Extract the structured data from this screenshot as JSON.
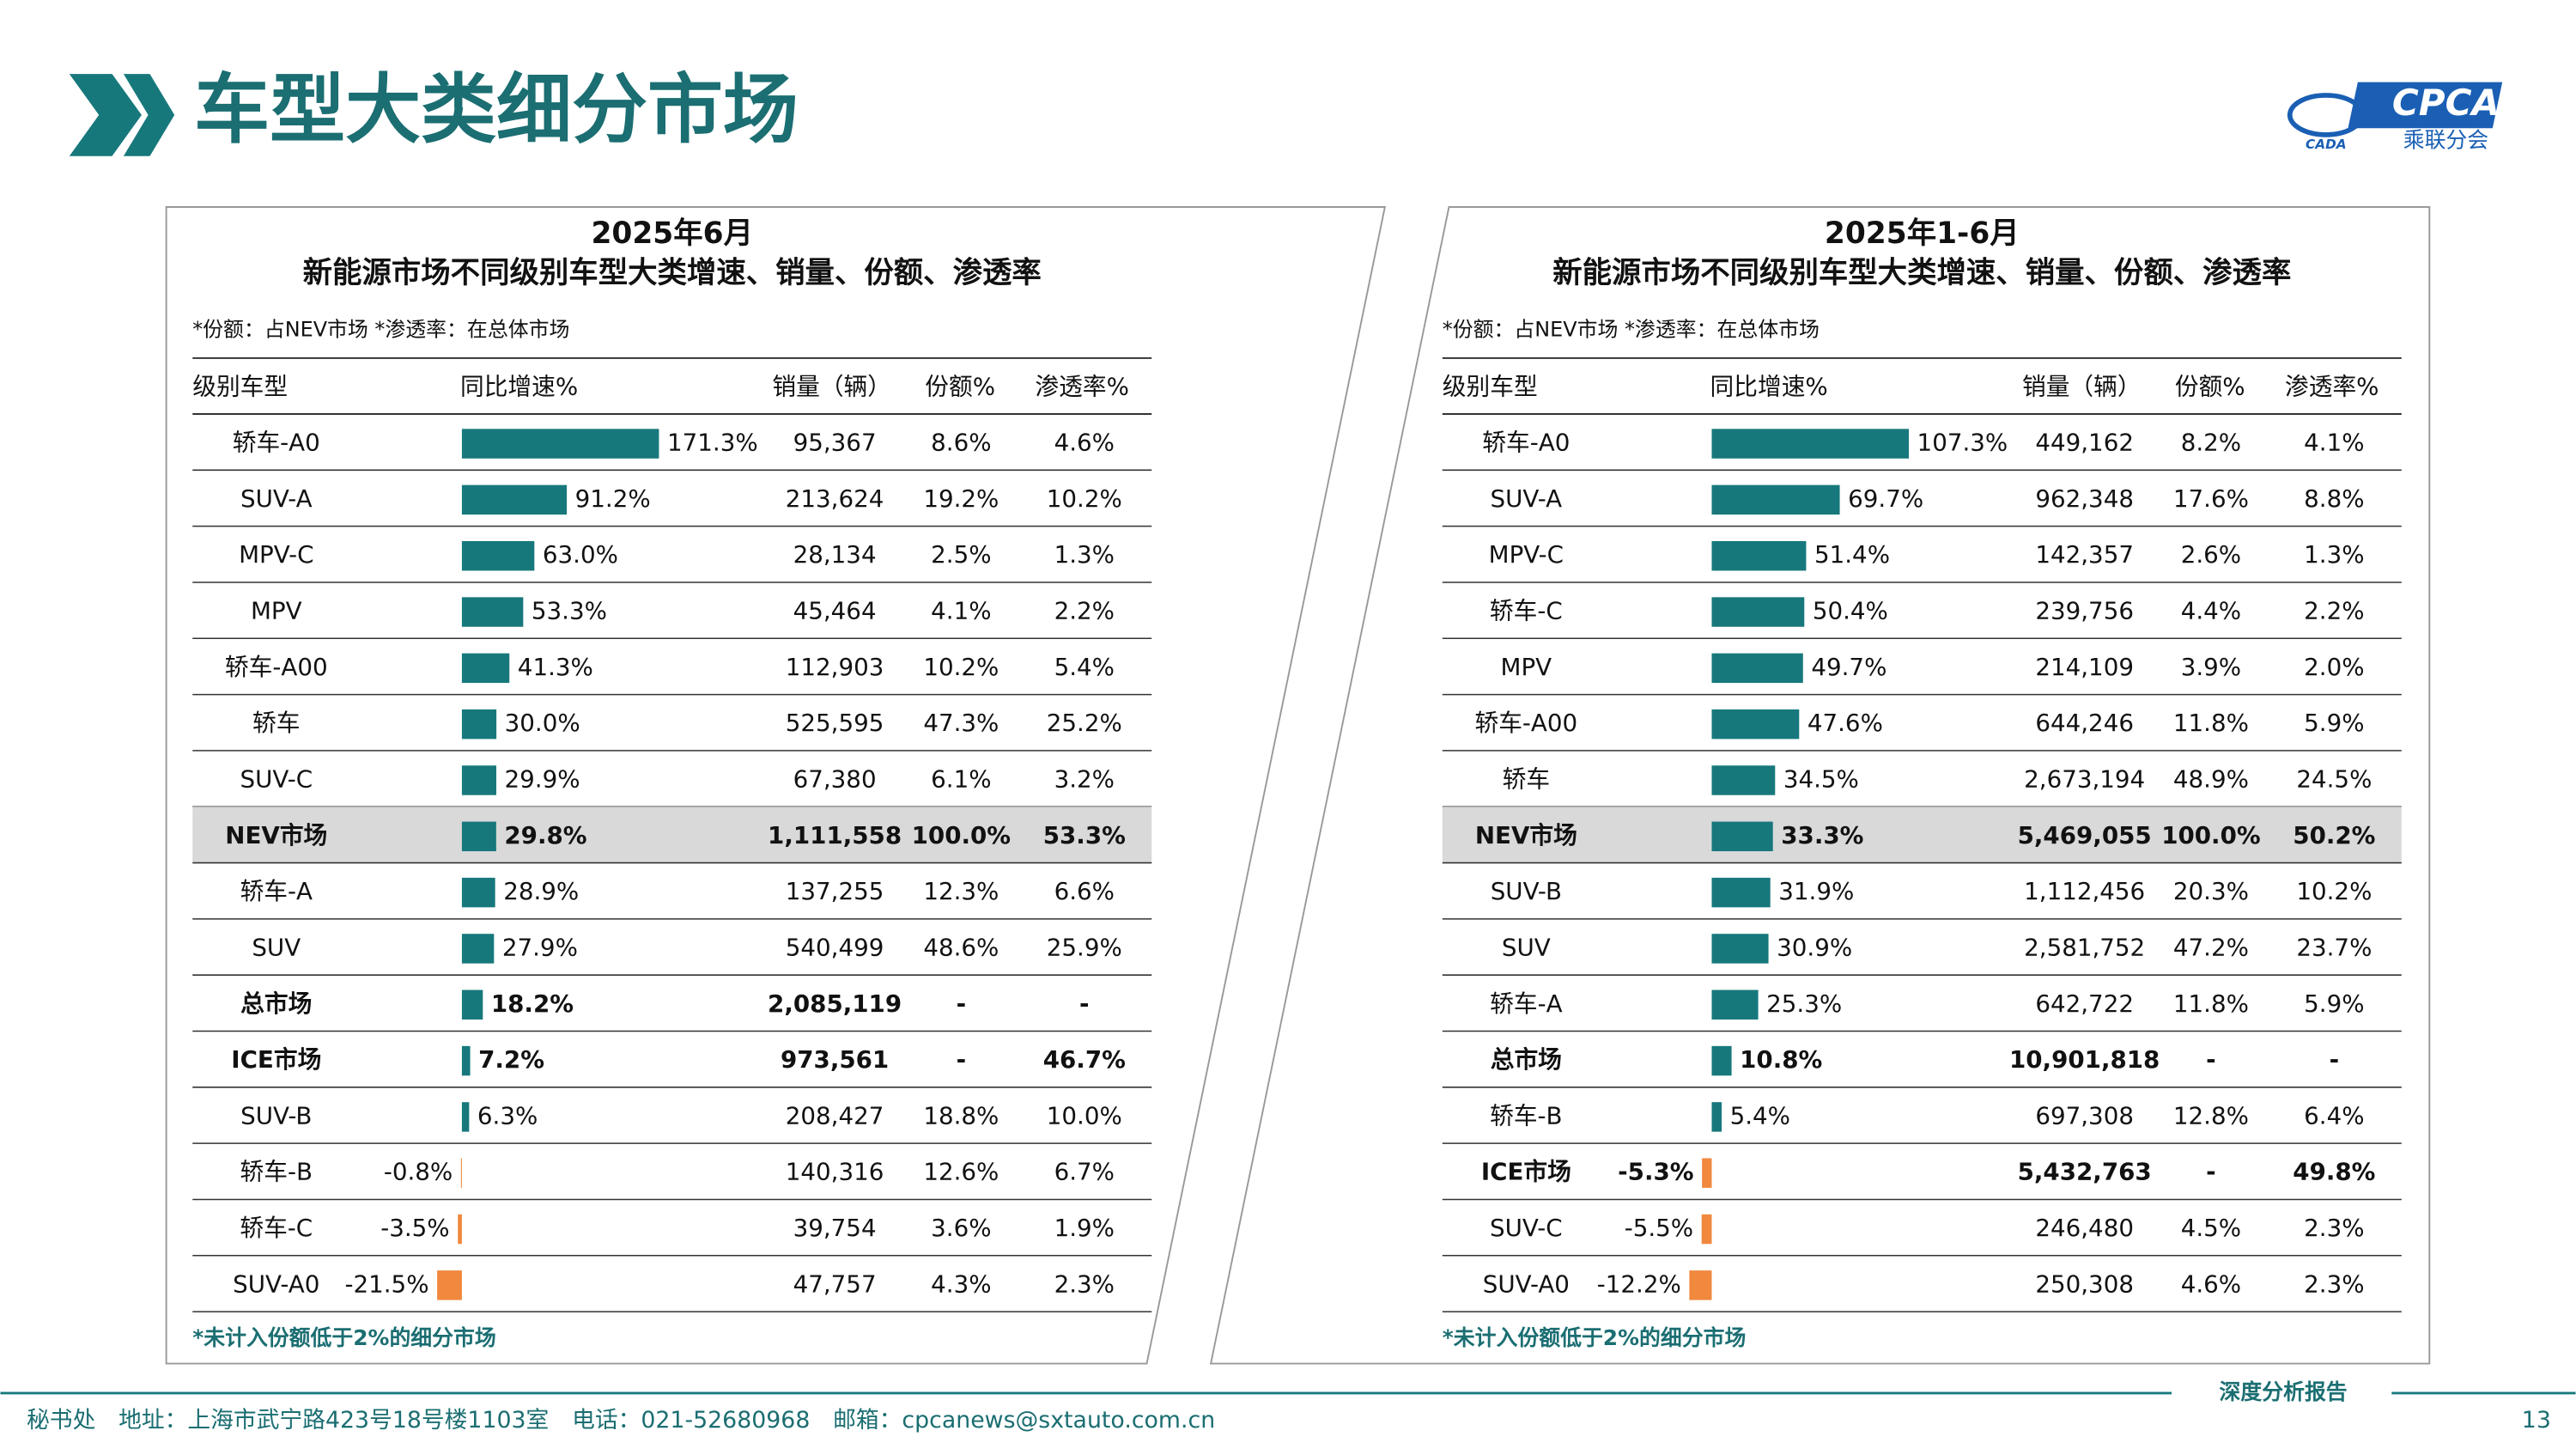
{
  "header": {
    "title": "车型大类细分市场",
    "logo": {
      "text": "CPCA",
      "subtitle": "乘联分会",
      "mark": "CADA"
    }
  },
  "bar_colors": {
    "positive": "#17787c",
    "negative": "#f0883e"
  },
  "tables": [
    {
      "title": "2025年6月",
      "subtitle": "新能源市场不同级别车型大类增速、销量、份额、渗透率",
      "note": "*份额：占NEV市场   *渗透率：在总体市场",
      "columns": [
        "级别车型",
        "同比增速%",
        "销量（辆）",
        "份额%",
        "渗透率%"
      ],
      "rows": [
        {
          "name": "轿车-A0",
          "growth": {
            "value": 171.3,
            "label": "171.3%"
          },
          "sales": "95,367",
          "share": "8.6%",
          "penetration": "4.6%"
        },
        {
          "name": "SUV-A",
          "growth": {
            "value": 91.2,
            "label": "91.2%"
          },
          "sales": "213,624",
          "share": "19.2%",
          "penetration": "10.2%"
        },
        {
          "name": "MPV-C",
          "growth": {
            "value": 63.0,
            "label": "63.0%"
          },
          "sales": "28,134",
          "share": "2.5%",
          "penetration": "1.3%"
        },
        {
          "name": "MPV",
          "growth": {
            "value": 53.3,
            "label": "53.3%"
          },
          "sales": "45,464",
          "share": "4.1%",
          "penetration": "2.2%"
        },
        {
          "name": "轿车-A00",
          "growth": {
            "value": 41.3,
            "label": "41.3%"
          },
          "sales": "112,903",
          "share": "10.2%",
          "penetration": "5.4%"
        },
        {
          "name": "轿车",
          "growth": {
            "value": 30.0,
            "label": "30.0%"
          },
          "sales": "525,595",
          "share": "47.3%",
          "penetration": "25.2%"
        },
        {
          "name": "SUV-C",
          "growth": {
            "value": 29.9,
            "label": "29.9%"
          },
          "sales": "67,380",
          "share": "6.1%",
          "penetration": "3.2%"
        },
        {
          "name": "NEV市场",
          "growth": {
            "value": 29.8,
            "label": "29.8%"
          },
          "sales": "1,111,558",
          "share": "100.0%",
          "penetration": "53.3%",
          "style": "highlight"
        },
        {
          "name": "轿车-A",
          "growth": {
            "value": 28.9,
            "label": "28.9%"
          },
          "sales": "137,255",
          "share": "12.3%",
          "penetration": "6.6%"
        },
        {
          "name": "SUV",
          "growth": {
            "value": 27.9,
            "label": "27.9%"
          },
          "sales": "540,499",
          "share": "48.6%",
          "penetration": "25.9%"
        },
        {
          "name": "总市场",
          "growth": {
            "value": 18.2,
            "label": "18.2%"
          },
          "sales": "2,085,119",
          "share": "-",
          "penetration": "-",
          "style": "bold"
        },
        {
          "name": "ICE市场",
          "growth": {
            "value": 7.2,
            "label": "7.2%"
          },
          "sales": "973,561",
          "share": "-",
          "penetration": "46.7%",
          "style": "bold"
        },
        {
          "name": "SUV-B",
          "growth": {
            "value": 6.3,
            "label": "6.3%"
          },
          "sales": "208,427",
          "share": "18.8%",
          "penetration": "10.0%"
        },
        {
          "name": "轿车-B",
          "growth": {
            "value": -0.8,
            "label": "-0.8%"
          },
          "sales": "140,316",
          "share": "12.6%",
          "penetration": "6.7%"
        },
        {
          "name": "轿车-C",
          "growth": {
            "value": -3.5,
            "label": "-3.5%"
          },
          "sales": "39,754",
          "share": "3.6%",
          "penetration": "1.9%"
        },
        {
          "name": "SUV-A0",
          "growth": {
            "value": -21.5,
            "label": "-21.5%"
          },
          "sales": "47,757",
          "share": "4.3%",
          "penetration": "2.3%"
        }
      ],
      "footnote": "*未计入份额低于2%的细分市场"
    },
    {
      "title": "2025年1-6月",
      "subtitle": "新能源市场不同级别车型大类增速、销量、份额、渗透率",
      "note": "*份额：占NEV市场   *渗透率：在总体市场",
      "columns": [
        "级别车型",
        "同比增速%",
        "销量（辆）",
        "份额%",
        "渗透率%"
      ],
      "rows": [
        {
          "name": "轿车-A0",
          "growth": {
            "value": 107.3,
            "label": "107.3%"
          },
          "sales": "449,162",
          "share": "8.2%",
          "penetration": "4.1%"
        },
        {
          "name": "SUV-A",
          "growth": {
            "value": 69.7,
            "label": "69.7%"
          },
          "sales": "962,348",
          "share": "17.6%",
          "penetration": "8.8%"
        },
        {
          "name": "MPV-C",
          "growth": {
            "value": 51.4,
            "label": "51.4%"
          },
          "sales": "142,357",
          "share": "2.6%",
          "penetration": "1.3%"
        },
        {
          "name": "轿车-C",
          "growth": {
            "value": 50.4,
            "label": "50.4%"
          },
          "sales": "239,756",
          "share": "4.4%",
          "penetration": "2.2%"
        },
        {
          "name": "MPV",
          "growth": {
            "value": 49.7,
            "label": "49.7%"
          },
          "sales": "214,109",
          "share": "3.9%",
          "penetration": "2.0%"
        },
        {
          "name": "轿车-A00",
          "growth": {
            "value": 47.6,
            "label": "47.6%"
          },
          "sales": "644,246",
          "share": "11.8%",
          "penetration": "5.9%"
        },
        {
          "name": "轿车",
          "growth": {
            "value": 34.5,
            "label": "34.5%"
          },
          "sales": "2,673,194",
          "share": "48.9%",
          "penetration": "24.5%"
        },
        {
          "name": "NEV市场",
          "growth": {
            "value": 33.3,
            "label": "33.3%"
          },
          "sales": "5,469,055",
          "share": "100.0%",
          "penetration": "50.2%",
          "style": "highlight"
        },
        {
          "name": "SUV-B",
          "growth": {
            "value": 31.9,
            "label": "31.9%"
          },
          "sales": "1,112,456",
          "share": "20.3%",
          "penetration": "10.2%"
        },
        {
          "name": "SUV",
          "growth": {
            "value": 30.9,
            "label": "30.9%"
          },
          "sales": "2,581,752",
          "share": "47.2%",
          "penetration": "23.7%"
        },
        {
          "name": "轿车-A",
          "growth": {
            "value": 25.3,
            "label": "25.3%"
          },
          "sales": "642,722",
          "share": "11.8%",
          "penetration": "5.9%"
        },
        {
          "name": "总市场",
          "growth": {
            "value": 10.8,
            "label": "10.8%"
          },
          "sales": "10,901,818",
          "share": "-",
          "penetration": "-",
          "style": "bold"
        },
        {
          "name": "轿车-B",
          "growth": {
            "value": 5.4,
            "label": "5.4%"
          },
          "sales": "697,308",
          "share": "12.8%",
          "penetration": "6.4%"
        },
        {
          "name": "ICE市场",
          "growth": {
            "value": -5.3,
            "label": "-5.3%"
          },
          "sales": "5,432,763",
          "share": "-",
          "penetration": "49.8%",
          "style": "bold"
        },
        {
          "name": "SUV-C",
          "growth": {
            "value": -5.5,
            "label": "-5.5%"
          },
          "sales": "246,480",
          "share": "4.5%",
          "penetration": "2.3%"
        },
        {
          "name": "SUV-A0",
          "growth": {
            "value": -12.2,
            "label": "-12.2%"
          },
          "sales": "250,308",
          "share": "4.6%",
          "penetration": "2.3%"
        }
      ],
      "footnote": "*未计入份额低于2%的细分市场"
    }
  ],
  "footer": {
    "address": "秘书处　地址：上海市武宁路423号18号楼1103室　电话：021-52680968　邮箱：cpcanews@sxtauto.com.cn",
    "report": "深度分析报告",
    "page": "13"
  }
}
